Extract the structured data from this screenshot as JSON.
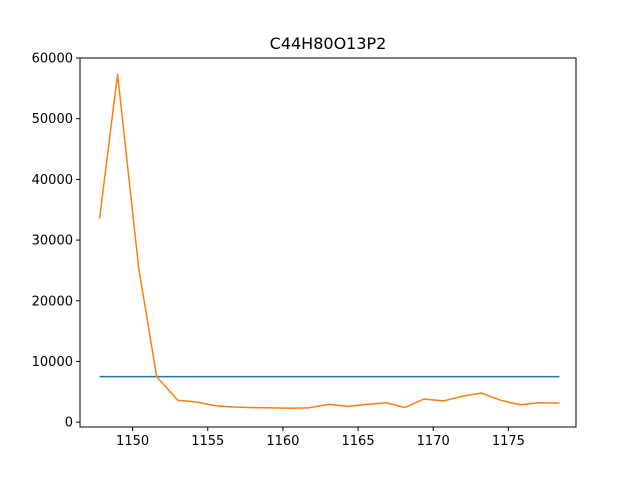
{
  "chart_data": {
    "type": "line",
    "title": "C44H80O13P2",
    "xlabel": "",
    "ylabel": "",
    "xlim": [
      1146.5,
      1179.5
    ],
    "ylim": [
      -800,
      60000
    ],
    "x_ticks": [
      1150,
      1155,
      1160,
      1165,
      1170,
      1175
    ],
    "y_ticks": [
      0,
      10000,
      20000,
      30000,
      40000,
      50000,
      60000
    ],
    "grid": false,
    "series": [
      {
        "color": "#1f77b4",
        "x": [
          1147.8,
          1178.4
        ],
        "y": [
          7500,
          7500
        ]
      },
      {
        "color": "#ff7f0e",
        "x": [
          1147.8,
          1149.0,
          1150.4,
          1151.6,
          1153.0,
          1154.3,
          1155.5,
          1156.7,
          1158.0,
          1159.3,
          1160.5,
          1161.7,
          1163.1,
          1164.3,
          1165.5,
          1166.9,
          1168.1,
          1169.4,
          1170.7,
          1172.0,
          1173.2,
          1174.5,
          1175.8,
          1177.0,
          1178.4
        ],
        "y": [
          33500,
          57300,
          25500,
          7500,
          3600,
          3300,
          2700,
          2500,
          2400,
          2350,
          2300,
          2350,
          2950,
          2600,
          2900,
          3200,
          2400,
          3800,
          3500,
          4300,
          4800,
          3600,
          2850,
          3200,
          3150
        ]
      }
    ]
  }
}
